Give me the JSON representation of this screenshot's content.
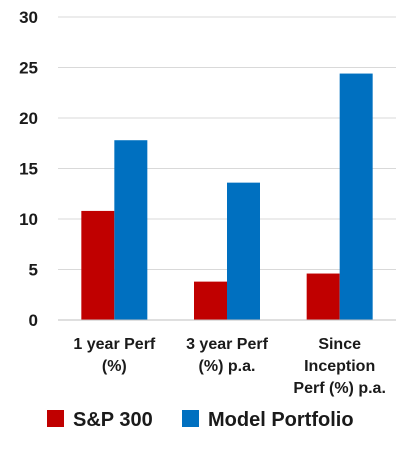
{
  "chart_data": {
    "type": "bar",
    "categories": [
      [
        "1 year Perf",
        "(%)"
      ],
      [
        "3 year Perf",
        "(%) p.a."
      ],
      [
        "Since",
        "Inception",
        "Perf (%) p.a."
      ]
    ],
    "series": [
      {
        "name": "S&P 300",
        "color": "#c00000",
        "values": [
          10.8,
          3.8,
          4.6
        ]
      },
      {
        "name": "Model Portfolio",
        "color": "#0070c0",
        "values": [
          17.8,
          13.6,
          24.4
        ]
      }
    ],
    "yticks": [
      0,
      5,
      10,
      15,
      20,
      25,
      30
    ],
    "ylim": [
      0,
      30
    ],
    "grid": true,
    "legend_position": "bottom",
    "title": "",
    "xlabel": "",
    "ylabel": ""
  }
}
